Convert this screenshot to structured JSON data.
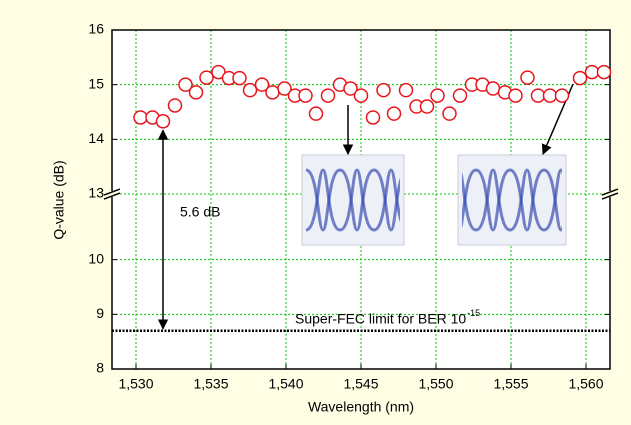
{
  "chart_data": {
    "type": "scatter",
    "x_label": "Wavelength (nm)",
    "y_label": "Q-value (dB)",
    "xlim": [
      1528.4,
      1561.6
    ],
    "xticks": [
      {
        "value": 1530,
        "label": "1,530"
      },
      {
        "value": 1535,
        "label": "1,535"
      },
      {
        "value": 1540,
        "label": "1,540"
      },
      {
        "value": 1545,
        "label": "1,545"
      },
      {
        "value": 1550,
        "label": "1,550"
      },
      {
        "value": 1555,
        "label": "1,555"
      },
      {
        "value": 1560,
        "label": "1,560"
      }
    ],
    "ylim": [
      8,
      16
    ],
    "y_break": [
      11.2,
      13
    ],
    "yticks": [
      8,
      9,
      10,
      13,
      14,
      15,
      16
    ],
    "grid": true,
    "series": [
      {
        "color": "#e8141c",
        "x": [
          1530.3,
          1531.1,
          1531.8,
          1532.6,
          1533.3,
          1534.0,
          1534.7,
          1535.5,
          1536.2,
          1536.9,
          1537.6,
          1538.4,
          1539.1,
          1539.9,
          1540.6,
          1541.3,
          1542.0,
          1542.8,
          1543.6,
          1544.3,
          1545.0,
          1545.8,
          1546.5,
          1547.2,
          1548.0,
          1548.7,
          1549.4,
          1550.1,
          1550.9,
          1551.6,
          1552.4,
          1553.1,
          1553.8,
          1554.6,
          1555.3,
          1556.1,
          1556.8,
          1557.6,
          1558.4,
          1559.6,
          1560.4,
          1561.2
        ],
        "values": [
          14.4,
          14.4,
          14.33,
          14.62,
          15.0,
          14.86,
          15.13,
          15.23,
          15.12,
          15.12,
          14.9,
          15.0,
          14.86,
          14.93,
          14.8,
          14.8,
          14.47,
          14.8,
          15.0,
          14.93,
          14.8,
          14.4,
          14.9,
          14.47,
          14.9,
          14.6,
          14.6,
          14.8,
          14.47,
          14.8,
          15.0,
          15.0,
          14.93,
          14.86,
          14.8,
          15.13,
          14.8,
          14.8,
          14.8,
          15.12,
          15.23,
          15.23
        ]
      }
    ],
    "limit_value": 8.7,
    "limit_label": "Super-FEC limit for BER 10",
    "limit_label_exponent": "-15",
    "margin_label": "5.6 dB"
  }
}
